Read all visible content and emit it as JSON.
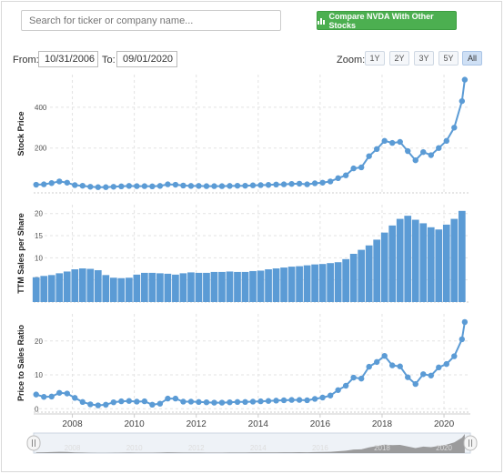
{
  "search": {
    "placeholder": "Search for ticker or company name..."
  },
  "compare_button": {
    "label": "Compare NVDA With Other Stocks",
    "color": "#4caf50"
  },
  "range": {
    "from_label": "From:",
    "from_value": "10/31/2006",
    "to_label": "To:",
    "to_value": "09/01/2020"
  },
  "zoom": {
    "label": "Zoom:",
    "options": [
      "1Y",
      "2Y",
      "3Y",
      "5Y",
      "All"
    ],
    "selected": "All"
  },
  "colors": {
    "series": "#5b9bd5",
    "grid": "#e3e3e3",
    "navigator_fill": "#8c8c8c"
  },
  "chart_data": [
    {
      "type": "line",
      "ylabel": "Stock Price",
      "yticks": [
        200,
        400
      ],
      "ylim": [
        -20,
        560
      ],
      "x": [
        2006.83,
        2007.08,
        2007.33,
        2007.58,
        2007.83,
        2008.08,
        2008.33,
        2008.58,
        2008.83,
        2009.08,
        2009.33,
        2009.58,
        2009.83,
        2010.08,
        2010.33,
        2010.58,
        2010.83,
        2011.08,
        2011.33,
        2011.58,
        2011.83,
        2012.08,
        2012.33,
        2012.58,
        2012.83,
        2013.08,
        2013.33,
        2013.58,
        2013.83,
        2014.08,
        2014.33,
        2014.58,
        2014.83,
        2015.08,
        2015.33,
        2015.58,
        2015.83,
        2016.08,
        2016.33,
        2016.58,
        2016.83,
        2017.08,
        2017.33,
        2017.58,
        2017.83,
        2018.08,
        2018.33,
        2018.58,
        2018.83,
        2019.08,
        2019.33,
        2019.58,
        2019.83,
        2020.08,
        2020.33,
        2020.58,
        2020.67
      ],
      "values": [
        20,
        22,
        28,
        36,
        30,
        18,
        15,
        10,
        8,
        8,
        10,
        12,
        14,
        13,
        13,
        12,
        14,
        22,
        20,
        16,
        14,
        14,
        13,
        13,
        13,
        14,
        15,
        15,
        17,
        18,
        19,
        21,
        22,
        24,
        25,
        22,
        27,
        30,
        36,
        52,
        66,
        100,
        105,
        160,
        195,
        235,
        225,
        230,
        185,
        140,
        180,
        165,
        200,
        235,
        300,
        430,
        535
      ]
    },
    {
      "type": "bar",
      "ylabel": "TTM Sales per Share",
      "yticks": [
        5,
        10,
        15,
        20
      ],
      "ylim": [
        0,
        22
      ],
      "x": [
        2006.83,
        2007.08,
        2007.33,
        2007.58,
        2007.83,
        2008.08,
        2008.33,
        2008.58,
        2008.83,
        2009.08,
        2009.33,
        2009.58,
        2009.83,
        2010.08,
        2010.33,
        2010.58,
        2010.83,
        2011.08,
        2011.33,
        2011.58,
        2011.83,
        2012.08,
        2012.33,
        2012.58,
        2012.83,
        2013.08,
        2013.33,
        2013.58,
        2013.83,
        2014.08,
        2014.33,
        2014.58,
        2014.83,
        2015.08,
        2015.33,
        2015.58,
        2015.83,
        2016.08,
        2016.33,
        2016.58,
        2016.83,
        2017.08,
        2017.33,
        2017.58,
        2017.83,
        2018.08,
        2018.33,
        2018.58,
        2018.83,
        2019.08,
        2019.33,
        2019.58,
        2019.83,
        2020.08,
        2020.33,
        2020.58
      ],
      "values": [
        5.6,
        5.9,
        6.1,
        6.5,
        6.9,
        7.4,
        7.6,
        7.5,
        7.2,
        6.1,
        5.5,
        5.4,
        5.5,
        6.2,
        6.6,
        6.6,
        6.5,
        6.4,
        6.2,
        6.5,
        6.7,
        6.6,
        6.6,
        6.8,
        6.8,
        6.9,
        6.8,
        6.8,
        7.0,
        7.1,
        7.4,
        7.6,
        7.8,
        8.0,
        8.1,
        8.3,
        8.5,
        8.6,
        8.8,
        9.0,
        9.7,
        10.9,
        11.8,
        12.8,
        14.1,
        15.7,
        17.3,
        18.8,
        19.5,
        18.6,
        17.8,
        16.9,
        16.4,
        17.5,
        18.8,
        20.6
      ]
    },
    {
      "type": "line",
      "ylabel": "Price to Sales Ratio",
      "yticks": [
        0,
        10,
        20
      ],
      "ylim": [
        -1,
        28
      ],
      "x": [
        2006.83,
        2007.08,
        2007.33,
        2007.58,
        2007.83,
        2008.08,
        2008.33,
        2008.58,
        2008.83,
        2009.08,
        2009.33,
        2009.58,
        2009.83,
        2010.08,
        2010.33,
        2010.58,
        2010.83,
        2011.08,
        2011.33,
        2011.58,
        2011.83,
        2012.08,
        2012.33,
        2012.58,
        2012.83,
        2013.08,
        2013.33,
        2013.58,
        2013.83,
        2014.08,
        2014.33,
        2014.58,
        2014.83,
        2015.08,
        2015.33,
        2015.58,
        2015.83,
        2016.08,
        2016.33,
        2016.58,
        2016.83,
        2017.08,
        2017.33,
        2017.58,
        2017.83,
        2018.08,
        2018.33,
        2018.58,
        2018.83,
        2019.08,
        2019.33,
        2019.58,
        2019.83,
        2020.08,
        2020.33,
        2020.58,
        2020.67
      ],
      "values": [
        4.2,
        3.5,
        3.6,
        4.7,
        4.5,
        3.2,
        2.0,
        1.3,
        1.0,
        1.2,
        1.9,
        2.2,
        2.3,
        2.1,
        2.2,
        1.2,
        1.5,
        3.0,
        3.0,
        2.1,
        2.1,
        2.0,
        1.9,
        1.8,
        1.8,
        1.9,
        2.0,
        2.0,
        2.1,
        2.2,
        2.3,
        2.4,
        2.5,
        2.6,
        2.6,
        2.5,
        2.9,
        3.3,
        3.9,
        5.5,
        6.8,
        9.2,
        8.9,
        12.4,
        13.8,
        15.6,
        12.8,
        12.5,
        9.3,
        7.3,
        10.2,
        9.8,
        12.2,
        13.2,
        15.5,
        20.5,
        25.6
      ]
    }
  ],
  "x_axis": {
    "ticks": [
      "2008",
      "2010",
      "2012",
      "2014",
      "2016",
      "2018",
      "2020"
    ],
    "xlim": [
      2006.75,
      2020.85
    ]
  },
  "navigator": {
    "labels": [
      "2008",
      "2010",
      "2012",
      "2014",
      "2016",
      "2018",
      "2020"
    ]
  }
}
